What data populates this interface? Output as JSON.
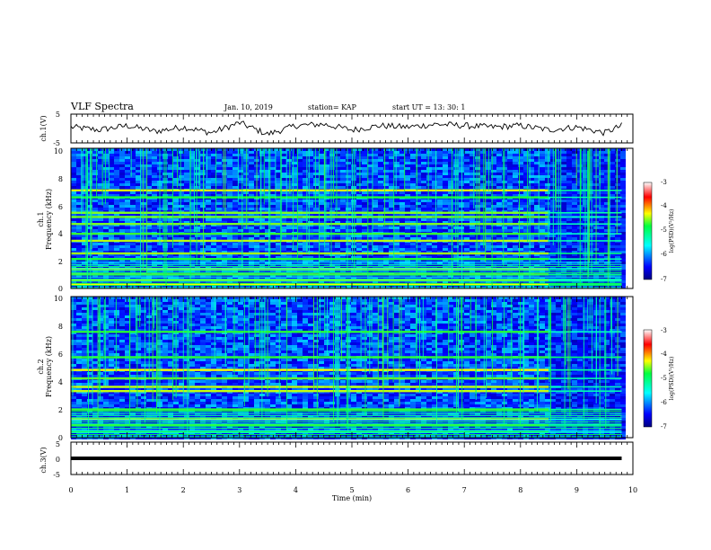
{
  "header": {
    "title": "VLF Spectra",
    "date": "Jan. 10, 2019",
    "station": "station= KAP",
    "start": "start  UT =   13: 30: 1"
  },
  "chart_data": [
    {
      "type": "line",
      "panel": "ch1-waveform",
      "ylabel": "ch.1(V)",
      "ylim": [
        -5,
        5
      ],
      "yticks": [
        "5",
        "-5"
      ],
      "xlim": [
        0,
        10
      ],
      "x": [
        0,
        0.5,
        1,
        1.5,
        2,
        2.5,
        3,
        3.5,
        4,
        4.5,
        5,
        5.5,
        6,
        6.5,
        7,
        7.5,
        8,
        8.5,
        9,
        9.5,
        9.8
      ],
      "values": [
        0.5,
        -0.5,
        1,
        -1,
        0.5,
        -1.5,
        2,
        -2,
        1,
        1.5,
        -0.5,
        1,
        0.5,
        1.5,
        1,
        0.5,
        1,
        -0.5,
        0.5,
        -1.5,
        1
      ]
    },
    {
      "type": "heatmap",
      "panel": "ch1-spectrogram",
      "ylabel": "ch.1",
      "ylabel2": "Frequency (kHz)",
      "ylim": [
        0,
        10
      ],
      "yticks": [
        "0",
        "2",
        "4",
        "6",
        "8",
        "10"
      ],
      "xlim": [
        0,
        10
      ],
      "data_end_min": 9.8,
      "changepoint_min": 8.5,
      "bright_bands_khz": [
        0.3,
        0.6,
        1.0,
        1.4,
        2.1,
        2.5,
        3.4,
        3.9,
        4.6,
        5.1,
        5.4,
        6.5,
        7.0
      ],
      "colorbar": {
        "label": "log(PSD)(V²/Hz)",
        "range": [
          -7,
          -3
        ],
        "ticks": [
          "-3",
          "-4",
          "-5",
          "-6",
          "-7"
        ]
      }
    },
    {
      "type": "heatmap",
      "panel": "ch2-spectrogram",
      "ylabel": "ch.2",
      "ylabel2": "Frequency (kHz)",
      "ylim": [
        0,
        10
      ],
      "yticks": [
        "0",
        "2",
        "4",
        "6",
        "8",
        "10"
      ],
      "xlim": [
        0,
        10
      ],
      "data_end_min": 9.8,
      "changepoint_min": 8.5,
      "bright_bands_khz": [
        0.4,
        0.9,
        1.3,
        2.0,
        3.3,
        3.6,
        4.2,
        4.8,
        5.7,
        7.5
      ],
      "colorbar": {
        "label": "log(PSD)(V²/Hz)",
        "range": [
          -7,
          -3
        ],
        "ticks": [
          "-3",
          "-4",
          "-5",
          "-6",
          "-7"
        ]
      }
    },
    {
      "type": "line",
      "panel": "ch3-waveform",
      "ylabel": "ch.3(V)",
      "ylim": [
        -5,
        5
      ],
      "yticks": [
        "5",
        "0",
        "-5"
      ],
      "xlim": [
        0,
        10
      ],
      "x": [
        0,
        9.8
      ],
      "values": [
        0,
        0
      ]
    }
  ],
  "xaxis": {
    "label": "Time (min)",
    "ticks": [
      "0",
      "1",
      "2",
      "3",
      "4",
      "5",
      "6",
      "7",
      "8",
      "9",
      "10"
    ]
  }
}
